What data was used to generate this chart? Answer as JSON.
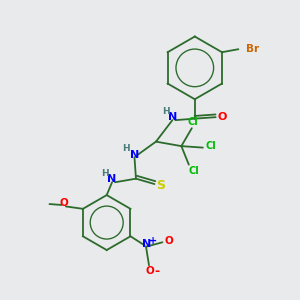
{
  "background_color": "#e8eaeb",
  "atoms": {
    "Br": {
      "color": "#cc6600"
    },
    "N": {
      "color": "#0000ff"
    },
    "O": {
      "color": "#ff0000"
    },
    "Cl": {
      "color": "#00bb00"
    },
    "S": {
      "color": "#cccc00"
    },
    "H": {
      "color": "#4a7a7a"
    },
    "bond": {
      "color": "#2d6b2d"
    }
  },
  "figsize": [
    3.0,
    3.0
  ],
  "dpi": 100
}
